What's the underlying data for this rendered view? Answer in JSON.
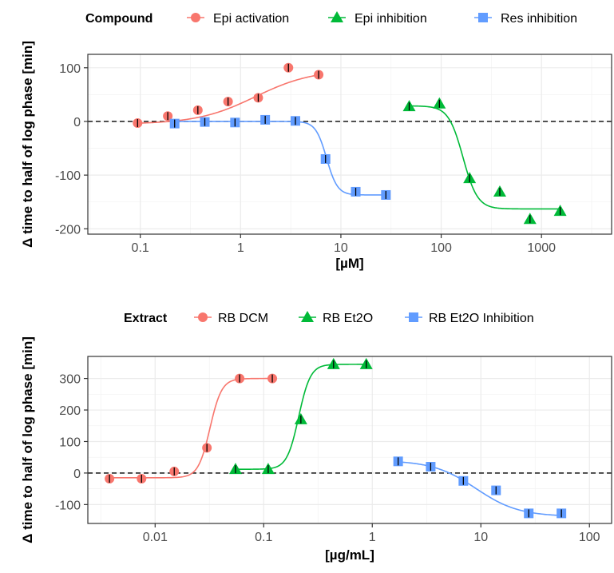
{
  "chart_data": [
    {
      "type": "scatter",
      "legend_title": "Compound",
      "legend_position": "top",
      "xlabel": "[µM]",
      "ylabel": "Δ time to half of log phase [min]",
      "xscale": "log10",
      "xlim": [
        0.03,
        5000
      ],
      "ylim": [
        -210,
        125
      ],
      "xticks": [
        0.1,
        1,
        10,
        100,
        1000
      ],
      "xtick_labels": [
        "0.1",
        "1",
        "10",
        "100",
        "1000"
      ],
      "yticks": [
        -200,
        -100,
        0,
        100
      ],
      "ytick_labels": [
        "-200",
        "-100",
        "0",
        "100"
      ],
      "reference_line": 0,
      "grid": true,
      "series": [
        {
          "name": "Epi activation",
          "color": "#F8766D",
          "marker": "circle",
          "x": [
            0.094,
            0.188,
            0.375,
            0.75,
            1.5,
            3.0,
            6.0
          ],
          "y": [
            -3,
            10,
            21,
            37,
            44,
            100,
            87
          ],
          "fit": {
            "bottom": -5,
            "top": 97,
            "ec50": 1.4,
            "hill": 1.5
          }
        },
        {
          "name": "Epi inhibition",
          "color": "#00BA38",
          "marker": "triangle",
          "x": [
            48,
            96,
            192,
            384,
            768,
            1536
          ],
          "y": [
            28,
            33,
            -106,
            -131,
            -182,
            -167
          ],
          "fit": {
            "bottom": -163,
            "top": 29,
            "ec50": 165,
            "hill": -6
          }
        },
        {
          "name": "Res inhibition",
          "color": "#619CFF",
          "marker": "square",
          "x": [
            0.22,
            0.44,
            0.88,
            1.76,
            3.52,
            7.03,
            14.06,
            28.1
          ],
          "y": [
            -4,
            -1,
            -2,
            3,
            1,
            -70,
            -131,
            -137
          ],
          "fit": {
            "bottom": -137,
            "top": 0,
            "ec50": 7.2,
            "hill": -8
          }
        }
      ]
    },
    {
      "type": "scatter",
      "legend_title": "Extract",
      "legend_position": "top",
      "xlabel": "[µg/mL]",
      "ylabel": "Δ time to half of log phase [min]",
      "xscale": "log10",
      "xlim": [
        0.0024,
        160
      ],
      "ylim": [
        -160,
        370
      ],
      "xticks": [
        0.01,
        0.1,
        1,
        10,
        100
      ],
      "xtick_labels": [
        "0.01",
        "0.1",
        "1",
        "10",
        "100"
      ],
      "yticks": [
        -100,
        0,
        100,
        200,
        300
      ],
      "ytick_labels": [
        "-100",
        "0",
        "100",
        "200",
        "300"
      ],
      "reference_line": 0,
      "grid": true,
      "series": [
        {
          "name": "RB DCM",
          "color": "#F8766D",
          "marker": "circle",
          "x": [
            0.0038,
            0.0075,
            0.015,
            0.03,
            0.06,
            0.12
          ],
          "y": [
            -18,
            -18,
            5,
            80,
            300,
            300
          ],
          "fit": {
            "bottom": -15,
            "top": 300,
            "ec50": 0.032,
            "hill": 8
          }
        },
        {
          "name": "RB Et2O",
          "color": "#00BA38",
          "marker": "triangle",
          "x": [
            0.055,
            0.11,
            0.22,
            0.44,
            0.88
          ],
          "y": [
            12,
            12,
            170,
            345,
            345
          ],
          "fit": {
            "bottom": 12,
            "top": 345,
            "ec50": 0.21,
            "hill": 8
          }
        },
        {
          "name": "RB Et2O Inhibition",
          "color": "#619CFF",
          "marker": "square",
          "x": [
            1.73,
            3.45,
            6.9,
            13.8,
            27.6,
            55.2
          ],
          "y": [
            37,
            20,
            -25,
            -55,
            -128,
            -128
          ],
          "fit": {
            "bottom": -138,
            "top": 40,
            "ec50": 9,
            "hill": -2.2
          }
        }
      ]
    }
  ]
}
